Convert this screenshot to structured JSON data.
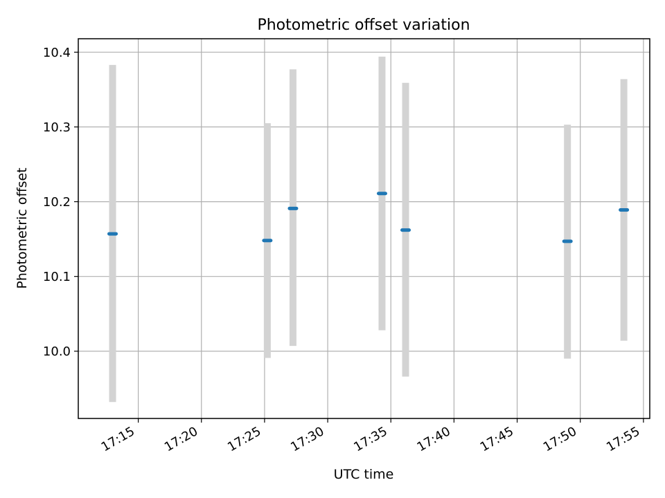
{
  "colors": {
    "background": "#ffffff",
    "grid": "#b0b0b0",
    "errorbar": "#d3d3d3",
    "point": "#1f77b4",
    "axis": "#000000"
  },
  "chart_data": {
    "type": "scatter",
    "title": "Photometric offset variation",
    "xlabel": "UTC time",
    "ylabel": "Photometric offset",
    "x_is_time": true,
    "xlim": [
      "17:10:15",
      "17:55:30"
    ],
    "ylim": [
      9.91,
      10.418
    ],
    "grid": true,
    "legend": "none",
    "x_ticks": [
      "17:15",
      "17:20",
      "17:25",
      "17:30",
      "17:35",
      "17:40",
      "17:45",
      "17:50",
      "17:55"
    ],
    "y_ticks": [
      "10.0",
      "10.1",
      "10.2",
      "10.3",
      "10.4"
    ],
    "y_tick_values": [
      10.0,
      10.1,
      10.2,
      10.3,
      10.4
    ],
    "points": [
      {
        "x": "17:12:58",
        "y": 10.157,
        "ylow": 9.932,
        "yhigh": 10.383
      },
      {
        "x": "17:25:13",
        "y": 10.148,
        "ylow": 9.991,
        "yhigh": 10.305
      },
      {
        "x": "17:27:15",
        "y": 10.191,
        "ylow": 10.007,
        "yhigh": 10.377
      },
      {
        "x": "17:34:18",
        "y": 10.211,
        "ylow": 10.028,
        "yhigh": 10.394
      },
      {
        "x": "17:36:10",
        "y": 10.162,
        "ylow": 9.966,
        "yhigh": 10.359
      },
      {
        "x": "17:48:59",
        "y": 10.147,
        "ylow": 9.99,
        "yhigh": 10.303
      },
      {
        "x": "17:53:27",
        "y": 10.189,
        "ylow": 10.014,
        "yhigh": 10.364
      }
    ]
  }
}
